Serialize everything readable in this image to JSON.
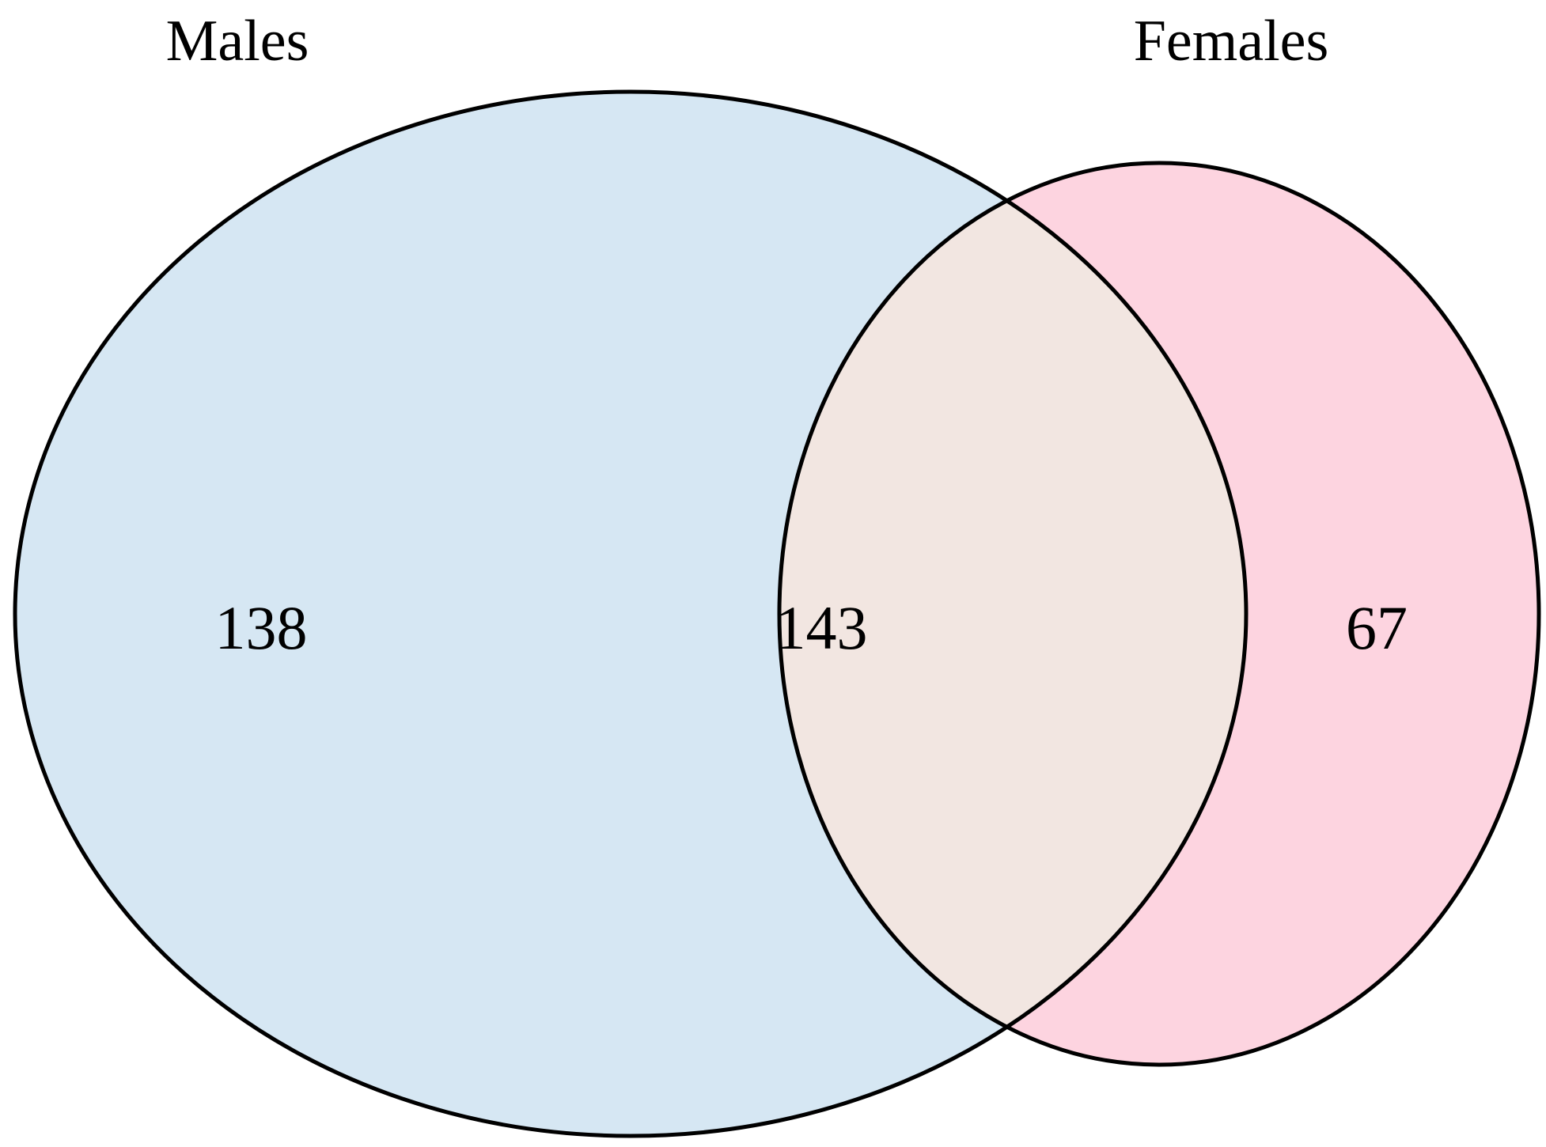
{
  "sets": [
    {
      "name": "Males",
      "fill": "#d6e7f3"
    },
    {
      "name": "Females",
      "fill": "#fdd4e0"
    }
  ],
  "intersection_fill": "#f2e6e1",
  "outline_color": "#000000",
  "counts": {
    "males_only": "138",
    "both": "143",
    "females_only": "67"
  }
}
